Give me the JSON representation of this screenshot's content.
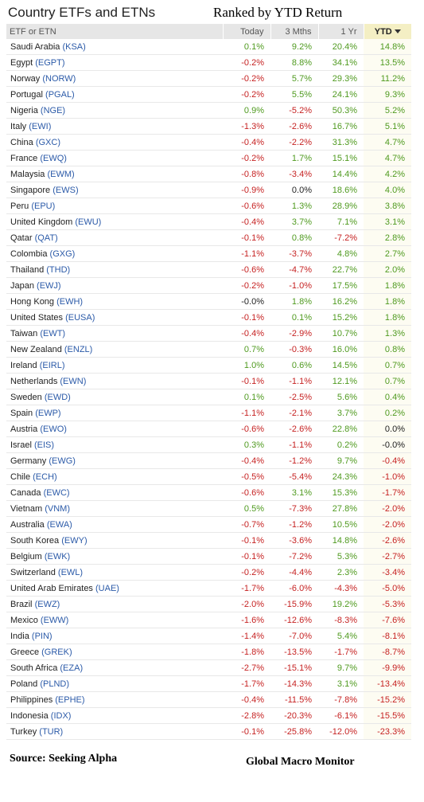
{
  "title": "Country ETFs and ETNs",
  "subtitle": "Ranked by YTD Return",
  "columns": [
    "ETF or ETN",
    "Today",
    "3 Mths",
    "1 Yr",
    "YTD"
  ],
  "sort_arrow_icon": "sort-desc-icon",
  "colors": {
    "positive": "#4f9a1f",
    "negative": "#c62222",
    "ticker": "#2b5aa8"
  },
  "rows": [
    {
      "name": "Saudi Arabia",
      "ticker": "(KSA)",
      "today": "0.1%",
      "m3": "9.2%",
      "y1": "20.4%",
      "ytd": "14.8%"
    },
    {
      "name": "Egypt",
      "ticker": "(EGPT)",
      "today": "-0.2%",
      "m3": "8.8%",
      "y1": "34.1%",
      "ytd": "13.5%"
    },
    {
      "name": "Norway",
      "ticker": "(NORW)",
      "today": "-0.2%",
      "m3": "5.7%",
      "y1": "29.3%",
      "ytd": "11.2%"
    },
    {
      "name": "Portugal",
      "ticker": "(PGAL)",
      "today": "-0.2%",
      "m3": "5.5%",
      "y1": "24.1%",
      "ytd": "9.3%"
    },
    {
      "name": "Nigeria",
      "ticker": "(NGE)",
      "today": "0.9%",
      "m3": "-5.2%",
      "y1": "50.3%",
      "ytd": "5.2%"
    },
    {
      "name": "Italy",
      "ticker": "(EWI)",
      "today": "-1.3%",
      "m3": "-2.6%",
      "y1": "16.7%",
      "ytd": "5.1%"
    },
    {
      "name": "China",
      "ticker": "(GXC)",
      "today": "-0.4%",
      "m3": "-2.2%",
      "y1": "31.3%",
      "ytd": "4.7%"
    },
    {
      "name": "France",
      "ticker": "(EWQ)",
      "today": "-0.2%",
      "m3": "1.7%",
      "y1": "15.1%",
      "ytd": "4.7%"
    },
    {
      "name": "Malaysia",
      "ticker": "(EWM)",
      "today": "-0.8%",
      "m3": "-3.4%",
      "y1": "14.4%",
      "ytd": "4.2%"
    },
    {
      "name": "Singapore",
      "ticker": "(EWS)",
      "today": "-0.9%",
      "m3": "0.0%",
      "y1": "18.6%",
      "ytd": "4.0%"
    },
    {
      "name": "Peru",
      "ticker": "(EPU)",
      "today": "-0.6%",
      "m3": "1.3%",
      "y1": "28.9%",
      "ytd": "3.8%"
    },
    {
      "name": "United Kingdom",
      "ticker": "(EWU)",
      "today": "-0.4%",
      "m3": "3.7%",
      "y1": "7.1%",
      "ytd": "3.1%"
    },
    {
      "name": "Qatar",
      "ticker": "(QAT)",
      "today": "-0.1%",
      "m3": "0.8%",
      "y1": "-7.2%",
      "ytd": "2.8%"
    },
    {
      "name": "Colombia",
      "ticker": "(GXG)",
      "today": "-1.1%",
      "m3": "-3.7%",
      "y1": "4.8%",
      "ytd": "2.7%"
    },
    {
      "name": "Thailand",
      "ticker": "(THD)",
      "today": "-0.6%",
      "m3": "-4.7%",
      "y1": "22.7%",
      "ytd": "2.0%"
    },
    {
      "name": "Japan",
      "ticker": "(EWJ)",
      "today": "-0.2%",
      "m3": "-1.0%",
      "y1": "17.5%",
      "ytd": "1.8%"
    },
    {
      "name": "Hong Kong",
      "ticker": "(EWH)",
      "today": "-0.0%",
      "m3": "1.8%",
      "y1": "16.2%",
      "ytd": "1.8%"
    },
    {
      "name": "United States",
      "ticker": "(EUSA)",
      "today": "-0.1%",
      "m3": "0.1%",
      "y1": "15.2%",
      "ytd": "1.8%"
    },
    {
      "name": "Taiwan",
      "ticker": "(EWT)",
      "today": "-0.4%",
      "m3": "-2.9%",
      "y1": "10.7%",
      "ytd": "1.3%"
    },
    {
      "name": "New Zealand",
      "ticker": "(ENZL)",
      "today": "0.7%",
      "m3": "-0.3%",
      "y1": "16.0%",
      "ytd": "0.8%"
    },
    {
      "name": "Ireland",
      "ticker": "(EIRL)",
      "today": "1.0%",
      "m3": "0.6%",
      "y1": "14.5%",
      "ytd": "0.7%"
    },
    {
      "name": "Netherlands",
      "ticker": "(EWN)",
      "today": "-0.1%",
      "m3": "-1.1%",
      "y1": "12.1%",
      "ytd": "0.7%"
    },
    {
      "name": "Sweden",
      "ticker": "(EWD)",
      "today": "0.1%",
      "m3": "-2.5%",
      "y1": "5.6%",
      "ytd": "0.4%"
    },
    {
      "name": "Spain",
      "ticker": "(EWP)",
      "today": "-1.1%",
      "m3": "-2.1%",
      "y1": "3.7%",
      "ytd": "0.2%"
    },
    {
      "name": "Austria",
      "ticker": "(EWO)",
      "today": "-0.6%",
      "m3": "-2.6%",
      "y1": "22.8%",
      "ytd": "0.0%"
    },
    {
      "name": "Israel",
      "ticker": "(EIS)",
      "today": "0.3%",
      "m3": "-1.1%",
      "y1": "0.2%",
      "ytd": "-0.0%"
    },
    {
      "name": "Germany",
      "ticker": "(EWG)",
      "today": "-0.4%",
      "m3": "-1.2%",
      "y1": "9.7%",
      "ytd": "-0.4%"
    },
    {
      "name": "Chile",
      "ticker": "(ECH)",
      "today": "-0.5%",
      "m3": "-5.4%",
      "y1": "24.3%",
      "ytd": "-1.0%"
    },
    {
      "name": "Canada",
      "ticker": "(EWC)",
      "today": "-0.6%",
      "m3": "3.1%",
      "y1": "15.3%",
      "ytd": "-1.7%"
    },
    {
      "name": "Vietnam",
      "ticker": "(VNM)",
      "today": "0.5%",
      "m3": "-7.3%",
      "y1": "27.8%",
      "ytd": "-2.0%"
    },
    {
      "name": "Australia",
      "ticker": "(EWA)",
      "today": "-0.7%",
      "m3": "-1.2%",
      "y1": "10.5%",
      "ytd": "-2.0%"
    },
    {
      "name": "South Korea",
      "ticker": "(EWY)",
      "today": "-0.1%",
      "m3": "-3.6%",
      "y1": "14.8%",
      "ytd": "-2.6%"
    },
    {
      "name": "Belgium",
      "ticker": "(EWK)",
      "today": "-0.1%",
      "m3": "-7.2%",
      "y1": "5.3%",
      "ytd": "-2.7%"
    },
    {
      "name": "Switzerland",
      "ticker": "(EWL)",
      "today": "-0.2%",
      "m3": "-4.4%",
      "y1": "2.3%",
      "ytd": "-3.4%"
    },
    {
      "name": "United Arab Emirates",
      "ticker": "(UAE)",
      "today": "-1.7%",
      "m3": "-6.0%",
      "y1": "-4.3%",
      "ytd": "-5.0%"
    },
    {
      "name": "Brazil",
      "ticker": "(EWZ)",
      "today": "-2.0%",
      "m3": "-15.9%",
      "y1": "19.2%",
      "ytd": "-5.3%"
    },
    {
      "name": "Mexico",
      "ticker": "(EWW)",
      "today": "-1.6%",
      "m3": "-12.6%",
      "y1": "-8.3%",
      "ytd": "-7.6%"
    },
    {
      "name": "India",
      "ticker": "(PIN)",
      "today": "-1.4%",
      "m3": "-7.0%",
      "y1": "5.4%",
      "ytd": "-8.1%"
    },
    {
      "name": "Greece",
      "ticker": "(GREK)",
      "today": "-1.8%",
      "m3": "-13.5%",
      "y1": "-1.7%",
      "ytd": "-8.7%"
    },
    {
      "name": "South Africa",
      "ticker": "(EZA)",
      "today": "-2.7%",
      "m3": "-15.1%",
      "y1": "9.7%",
      "ytd": "-9.9%"
    },
    {
      "name": "Poland",
      "ticker": "(PLND)",
      "today": "-1.7%",
      "m3": "-14.3%",
      "y1": "3.1%",
      "ytd": "-13.4%"
    },
    {
      "name": "Philippines",
      "ticker": "(EPHE)",
      "today": "-0.4%",
      "m3": "-11.5%",
      "y1": "-7.8%",
      "ytd": "-15.2%"
    },
    {
      "name": "Indonesia",
      "ticker": "(IDX)",
      "today": "-2.8%",
      "m3": "-20.3%",
      "y1": "-6.1%",
      "ytd": "-15.5%"
    },
    {
      "name": "Turkey",
      "ticker": "(TUR)",
      "today": "-0.1%",
      "m3": "-25.8%",
      "y1": "-12.0%",
      "ytd": "-23.3%"
    }
  ],
  "footer": {
    "source": "Source:  Seeking Alpha",
    "brand": "Global Macro Monitor"
  }
}
